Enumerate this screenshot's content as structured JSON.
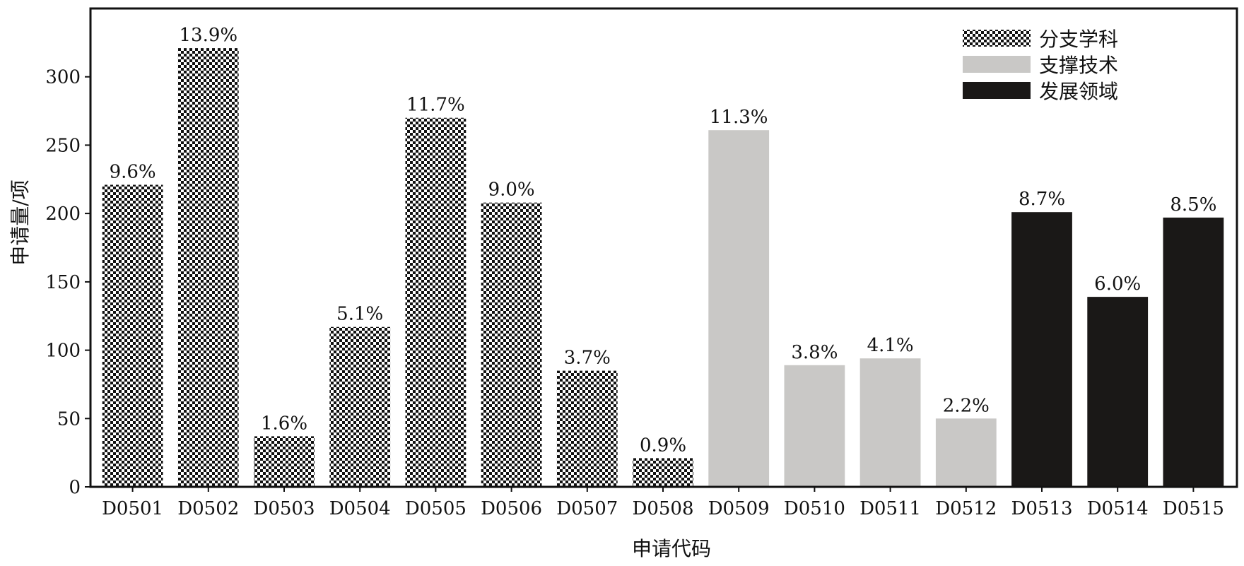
{
  "chart_data": {
    "type": "bar",
    "xlabel": "申请代码",
    "ylabel": "申请量/项",
    "ylim": [
      0,
      350
    ],
    "yticks": [
      0,
      50,
      100,
      150,
      200,
      250,
      300
    ],
    "grid": false,
    "legend_position": "top-right",
    "legend": [
      {
        "name": "分支学科",
        "pattern": "checker",
        "color": "#111111"
      },
      {
        "name": "支撑技术",
        "pattern": "solid",
        "color": "#c9c8c6"
      },
      {
        "name": "发展领域",
        "pattern": "solid",
        "color": "#1a1817"
      }
    ],
    "categories": [
      "D0501",
      "D0502",
      "D0503",
      "D0504",
      "D0505",
      "D0506",
      "D0507",
      "D0508",
      "D0509",
      "D0510",
      "D0511",
      "D0512",
      "D0513",
      "D0514",
      "D0515"
    ],
    "values": [
      221,
      321,
      37,
      117,
      270,
      208,
      85,
      21,
      261,
      89,
      94,
      50,
      201,
      139,
      197
    ],
    "labels": [
      "9.6%",
      "13.9%",
      "1.6%",
      "5.1%",
      "11.7%",
      "9.0%",
      "3.7%",
      "0.9%",
      "11.3%",
      "3.8%",
      "4.1%",
      "2.2%",
      "8.7%",
      "6.0%",
      "8.5%"
    ],
    "groups": [
      0,
      0,
      0,
      0,
      0,
      0,
      0,
      0,
      1,
      1,
      1,
      1,
      2,
      2,
      2
    ]
  }
}
